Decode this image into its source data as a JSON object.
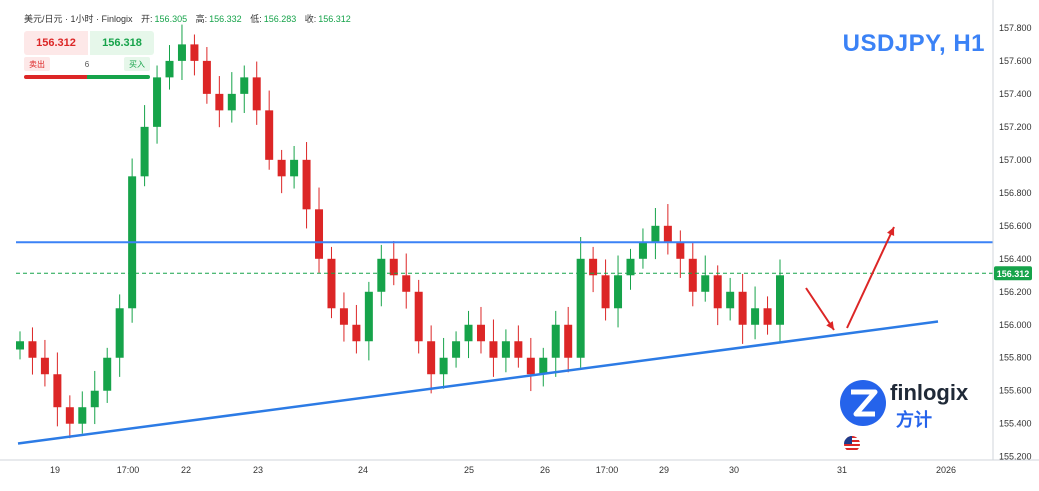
{
  "header": {
    "symbol_info": "美元/日元 · 1小时 · Finlogix",
    "open_label": "开:",
    "open_value": "156.305",
    "high_label": "高:",
    "high_value": "156.332",
    "low_label": "低:",
    "low_value": "156.283",
    "close_label": "收:",
    "close_value": "156.312"
  },
  "trade_panel": {
    "sell_price": "156.312",
    "buy_price": "156.318",
    "sell_label": "卖出",
    "buy_label": "买入",
    "spread": "6"
  },
  "chart_title": "USDJPY, H1",
  "logo": {
    "wordmark": "finlogix",
    "cn_wordmark": "方计"
  },
  "colors": {
    "up": "#16a34a",
    "down": "#dc2626",
    "line": "#3b82f6",
    "trend": "#2c7be5",
    "arrow": "#dc2626"
  },
  "chart_data": {
    "type": "candlestick",
    "title": "USDJPY, H1",
    "timeframe": "H1",
    "x_ticks": [
      "19",
      "17:00",
      "22",
      "23",
      "24",
      "25",
      "26",
      "17:00",
      "29",
      "30",
      "31",
      "2026"
    ],
    "y_ticks": [
      "157.800",
      "157.600",
      "157.400",
      "157.200",
      "157.000",
      "156.800",
      "156.600",
      "156.400",
      "156.200",
      "156.000",
      "155.800",
      "155.600",
      "155.400",
      "155.200"
    ],
    "ylim": [
      155.18,
      157.86
    ],
    "current_price": "156.312",
    "horizontal_level": 156.5,
    "closes": [
      155.9,
      155.8,
      155.7,
      155.5,
      155.4,
      155.5,
      155.6,
      155.8,
      156.1,
      156.9,
      157.2,
      157.5,
      157.6,
      157.7,
      157.6,
      157.4,
      157.3,
      157.4,
      157.5,
      157.3,
      157.0,
      156.9,
      157.0,
      156.7,
      156.4,
      156.1,
      156.0,
      155.9,
      156.2,
      156.4,
      156.3,
      156.2,
      155.9,
      155.7,
      155.8,
      155.9,
      156.0,
      155.9,
      155.8,
      155.9,
      155.8,
      155.7,
      155.8,
      156.0,
      155.8,
      156.4,
      156.3,
      156.1,
      156.3,
      156.4,
      156.5,
      156.6,
      156.5,
      156.4,
      156.2,
      156.3,
      156.1,
      156.2,
      156.0,
      156.1,
      156.0,
      156.3
    ]
  }
}
